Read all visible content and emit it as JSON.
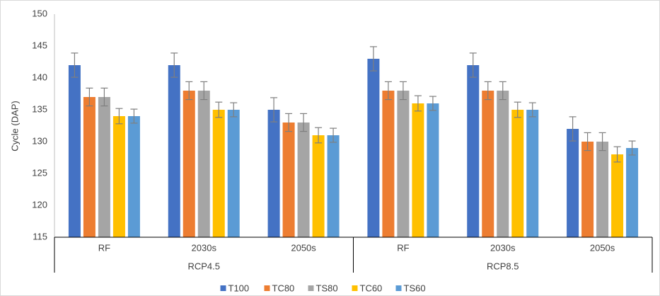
{
  "chart_data": {
    "type": "bar",
    "y_label": "Cycle (DAP)",
    "categories": [
      "RF",
      "2030s",
      "2050s",
      "RF",
      "2030s",
      "2050s"
    ],
    "groups": [
      "RCP4.5",
      "RCP8.5"
    ],
    "series": [
      {
        "name": "T100",
        "color": "#4472c4",
        "values": [
          142,
          142,
          135,
          143,
          142,
          132
        ],
        "errors": [
          1.9,
          1.9,
          1.9,
          1.9,
          1.9,
          1.9
        ]
      },
      {
        "name": "TC80",
        "color": "#ed7d31",
        "values": [
          137,
          138,
          133,
          138,
          138,
          130
        ],
        "errors": [
          1.4,
          1.4,
          1.4,
          1.4,
          1.4,
          1.4
        ]
      },
      {
        "name": "TS80",
        "color": "#a5a5a5",
        "values": [
          137,
          138,
          133,
          138,
          138,
          130
        ],
        "errors": [
          1.4,
          1.4,
          1.4,
          1.4,
          1.4,
          1.4
        ]
      },
      {
        "name": "TC60",
        "color": "#ffc000",
        "values": [
          134,
          135,
          131,
          136,
          135,
          128
        ],
        "errors": [
          1.2,
          1.2,
          1.2,
          1.2,
          1.2,
          1.2
        ]
      },
      {
        "name": "TS60",
        "color": "#5b9bd5",
        "values": [
          134,
          135,
          131,
          136,
          135,
          129
        ],
        "errors": [
          1.1,
          1.1,
          1.1,
          1.1,
          1.1,
          1.1
        ]
      }
    ],
    "ylim": [
      115,
      150
    ],
    "yticks": [
      115,
      120,
      125,
      130,
      135,
      140,
      145,
      150
    ],
    "grid": false,
    "legend": "bottom"
  }
}
